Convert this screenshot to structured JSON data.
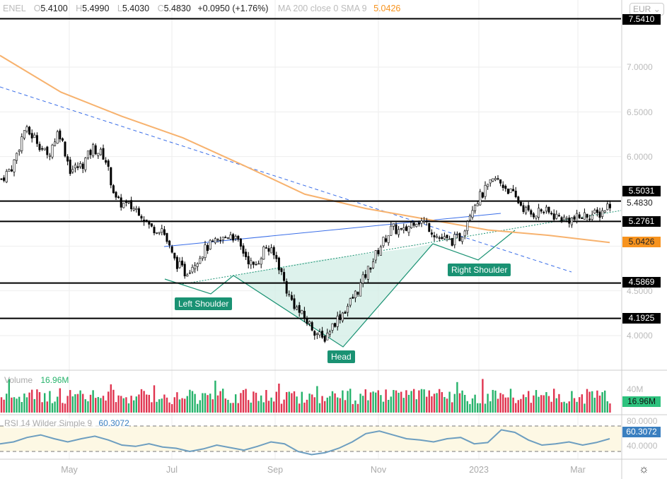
{
  "legend": {
    "symbol": "ENEL",
    "o_label": "O",
    "open": "5.4100",
    "h_label": "H",
    "high": "5.4990",
    "l_label": "L",
    "low": "5.4030",
    "c_label": "C",
    "close": "5.4830",
    "change": "+0.0950 (+1.76%)",
    "ma_label": "MA 200 close 0 SMA 9",
    "ma_value": "5.0426"
  },
  "currency": "EUR",
  "price_tags": {
    "level1": "7.5410",
    "level2": "5.5031",
    "last": "5.4830",
    "level3": "5.2761",
    "sma": "5.0426",
    "level4": "4.5869",
    "level5": "4.1925"
  },
  "annotations": {
    "left": "Left Shoulder",
    "head": "Head",
    "right": "Right Shoulder"
  },
  "volume": {
    "label": "Volume",
    "value": "16.96M",
    "axis": "40M"
  },
  "rsi": {
    "label": "RSI 14 Wilder Simple 9",
    "value": "60.3072",
    "axis_top": "80.0000",
    "axis_bottom": "40.0000"
  },
  "colors": {
    "up": "#26b36b",
    "down": "#e0344f",
    "sma": "#f7b26e",
    "rsi": "#6d9ec0",
    "pattern": "#1a9273"
  },
  "chart_data": {
    "type": "candlestick",
    "yaxis_ticks": [
      "7.0000",
      "6.5000",
      "6.0000",
      "4.5000",
      "4.0000"
    ],
    "ylim": [
      3.84,
      7.6
    ],
    "xaxis_ticks": [
      "May",
      "Jul",
      "Sep",
      "Nov",
      "2023",
      "Mar"
    ],
    "horizontal_levels": [
      7.541,
      5.5031,
      5.2761,
      4.5869,
      4.1925
    ],
    "approx_weekly_closes": [
      5.75,
      5.9,
      6.3,
      6.2,
      6.0,
      6.3,
      5.85,
      5.9,
      6.1,
      6.0,
      5.5,
      5.45,
      5.4,
      5.2,
      5.2,
      4.85,
      4.7,
      4.85,
      5.0,
      5.05,
      5.15,
      4.95,
      4.75,
      5.0,
      4.85,
      4.45,
      4.25,
      4.1,
      3.95,
      4.15,
      4.3,
      4.5,
      4.75,
      5.0,
      5.2,
      5.15,
      5.3,
      5.25,
      5.1,
      5.05,
      5.1,
      5.45,
      5.6,
      5.75,
      5.65,
      5.5,
      5.35,
      5.4,
      5.35,
      5.3,
      5.3,
      5.35,
      5.35,
      5.48
    ],
    "sma200": [
      7.13,
      6.72,
      6.45,
      6.21,
      5.9,
      5.58,
      5.42,
      5.3,
      5.18,
      5.12,
      5.04
    ],
    "rsi_approx": [
      52,
      55,
      62,
      66,
      60,
      55,
      60,
      64,
      58,
      50,
      48,
      52,
      47,
      45,
      40,
      44,
      50,
      46,
      42,
      48,
      55,
      52,
      40,
      35,
      38,
      45,
      55,
      68,
      72,
      66,
      60,
      58,
      55,
      60,
      62,
      52,
      54,
      74,
      70,
      58,
      50,
      52,
      55,
      50,
      54,
      60
    ]
  }
}
